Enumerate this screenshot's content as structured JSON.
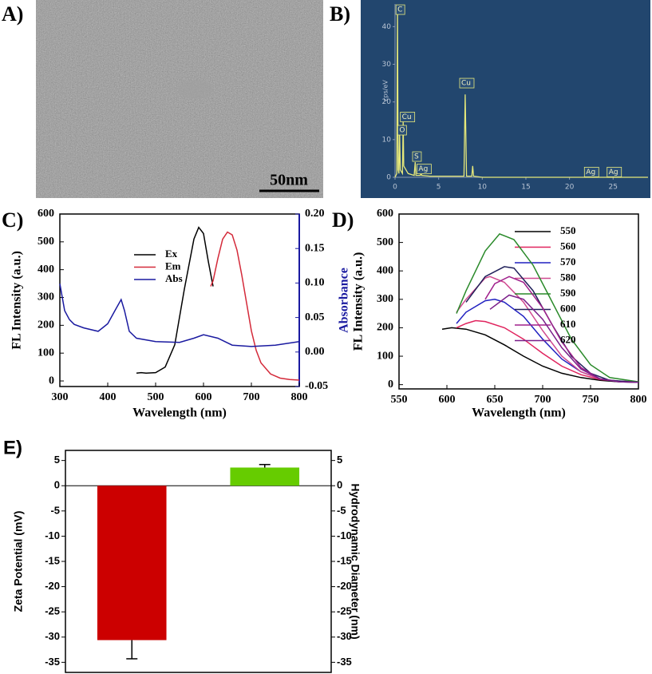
{
  "panel_labels": [
    "A)",
    "B)",
    "C)",
    "D)",
    "E)"
  ],
  "image": {
    "scale_bar": "50nm"
  },
  "chart_data": [
    {
      "type": "spectrum",
      "ylabel": "cps/eV",
      "xlim": [
        0,
        29
      ],
      "ylim": [
        0,
        46
      ],
      "xticks": [
        0,
        5,
        10,
        15,
        20,
        25
      ],
      "yticks": [
        0,
        10,
        20,
        30,
        40
      ],
      "color": "#e6e87a",
      "series": [
        {
          "x": [
            0,
            0.2,
            0.28,
            0.36,
            0.45,
            0.52,
            0.6,
            0.85,
            0.93,
            1.0,
            1.5,
            2.2,
            2.31,
            2.4,
            2.9,
            2.98,
            3.06,
            4,
            7.9,
            8.04,
            8.2,
            8.8,
            8.9,
            9.0,
            10,
            29
          ],
          "values": [
            0,
            1,
            45,
            2,
            1,
            12,
            2,
            1,
            15,
            3,
            1,
            0.5,
            4,
            0.5,
            0.5,
            2,
            0.5,
            0.3,
            0.3,
            22,
            0.3,
            0.3,
            3,
            0.3,
            0,
            0
          ]
        }
      ],
      "annotations": [
        {
          "text": "C",
          "x": 0.2,
          "y": 44.5
        },
        {
          "text": "O",
          "x": 0.4,
          "y": 12.5
        },
        {
          "text": "Cu",
          "x": 0.7,
          "y": 16
        },
        {
          "text": "S",
          "x": 2.1,
          "y": 5.5
        },
        {
          "text": "Ag",
          "x": 2.6,
          "y": 2.2
        },
        {
          "text": "Cu",
          "x": 7.5,
          "y": 25
        },
        {
          "text": "Ag",
          "x": 21.8,
          "y": 1.4
        },
        {
          "text": "Ag",
          "x": 24.4,
          "y": 1.4
        }
      ]
    },
    {
      "type": "line",
      "xlabel": "Wavelength (nm)",
      "ylabel": "FL Intensity (a.u.)",
      "y2label": "Absorbance",
      "y2color": "#1a1aa0",
      "xlim": [
        300,
        800
      ],
      "ylim": [
        -20,
        600
      ],
      "y2lim": [
        -0.05,
        0.2
      ],
      "xticks": [
        300,
        400,
        500,
        600,
        700,
        800
      ],
      "yticks": [
        0,
        100,
        200,
        300,
        400,
        500,
        600
      ],
      "y2ticks": [
        -0.05,
        {
          "value": 0,
          "label": "0.00"
        },
        0.05,
        {
          "value": 0.1,
          "label": "0.10"
        },
        0.15,
        {
          "value": 0.2,
          "label": "0.20"
        }
      ],
      "series": [
        {
          "name": "Ex",
          "color": "#000000",
          "x": [
            460,
            470,
            480,
            500,
            520,
            540,
            560,
            580,
            590,
            600,
            610,
            620
          ],
          "values": [
            28,
            30,
            28,
            30,
            50,
            130,
            330,
            510,
            552,
            530,
            430,
            340
          ]
        },
        {
          "name": "Em",
          "color": "#d42a3a",
          "x": [
            615,
            620,
            630,
            640,
            650,
            660,
            670,
            680,
            690,
            700,
            710,
            720,
            740,
            760,
            780,
            800
          ],
          "values": [
            340,
            360,
            440,
            510,
            535,
            525,
            470,
            380,
            280,
            180,
            110,
            65,
            25,
            10,
            5,
            3
          ]
        },
        {
          "name": "Abs",
          "color": "#1a1aa0",
          "axis": "y2",
          "x": [
            300,
            310,
            320,
            330,
            350,
            380,
            400,
            415,
            428,
            435,
            445,
            460,
            500,
            550,
            580,
            600,
            630,
            660,
            700,
            750,
            800
          ],
          "values": [
            0.099,
            0.06,
            0.047,
            0.04,
            0.035,
            0.03,
            0.041,
            0.06,
            0.076,
            0.06,
            0.03,
            0.02,
            0.015,
            0.014,
            0.02,
            0.025,
            0.02,
            0.01,
            0.008,
            0.01,
            0.015
          ]
        }
      ]
    },
    {
      "type": "line",
      "xlabel": "Wavelength (nm)",
      "ylabel": "FL Intensity (a.u.)",
      "xlim": [
        550,
        800
      ],
      "ylim": [
        -15,
        600
      ],
      "xticks": [
        550,
        600,
        650,
        700,
        750,
        800
      ],
      "yticks": [
        0,
        100,
        200,
        300,
        400,
        500,
        600
      ],
      "series": [
        {
          "name": "550",
          "color": "#000000",
          "x": [
            595,
            605,
            620,
            640,
            660,
            680,
            700,
            720,
            740,
            760,
            780,
            800
          ],
          "values": [
            195,
            200,
            195,
            175,
            140,
            100,
            65,
            40,
            25,
            15,
            10,
            8
          ]
        },
        {
          "name": "560",
          "color": "#e0245e",
          "x": [
            610,
            620,
            630,
            640,
            660,
            680,
            700,
            720,
            740,
            760,
            780,
            800
          ],
          "values": [
            200,
            215,
            225,
            222,
            200,
            160,
            110,
            65,
            35,
            18,
            12,
            10
          ]
        },
        {
          "name": "570",
          "color": "#2020c0",
          "x": [
            610,
            620,
            640,
            650,
            660,
            680,
            700,
            720,
            740,
            760,
            780,
            800
          ],
          "values": [
            215,
            255,
            295,
            300,
            290,
            240,
            160,
            90,
            45,
            20,
            12,
            10
          ]
        },
        {
          "name": "580",
          "color": "#d04a90",
          "x": [
            610,
            620,
            640,
            645,
            660,
            680,
            700,
            720,
            740,
            760,
            780,
            800
          ],
          "values": [
            255,
            300,
            375,
            380,
            360,
            290,
            190,
            100,
            45,
            20,
            12,
            10
          ]
        },
        {
          "name": "590",
          "color": "#2a8a2a",
          "x": [
            610,
            620,
            640,
            655,
            670,
            690,
            710,
            730,
            750,
            770,
            800
          ],
          "values": [
            250,
            330,
            470,
            530,
            510,
            420,
            290,
            160,
            70,
            25,
            10
          ]
        },
        {
          "name": "600",
          "color": "#20205a",
          "x": [
            620,
            640,
            660,
            670,
            690,
            710,
            730,
            750,
            770,
            800
          ],
          "values": [
            290,
            380,
            415,
            410,
            330,
            210,
            100,
            40,
            15,
            8
          ]
        },
        {
          "name": "610",
          "color": "#a0208c",
          "x": [
            640,
            650,
            665,
            680,
            700,
            720,
            740,
            760,
            780,
            800
          ],
          "values": [
            300,
            355,
            380,
            360,
            270,
            150,
            60,
            20,
            10,
            8
          ]
        },
        {
          "name": "620",
          "color": "#7b1f8a",
          "x": [
            645,
            655,
            665,
            680,
            700,
            720,
            740,
            760,
            780,
            800
          ],
          "values": [
            265,
            290,
            315,
            300,
            230,
            130,
            55,
            20,
            10,
            8
          ]
        }
      ]
    },
    {
      "type": "bar",
      "ylabel": "Zeta Potential (mV)",
      "y2label": "Hydrodynamic Diameter (nm)",
      "categories": [
        null,
        null
      ],
      "ylim": [
        -37,
        7
      ],
      "y2lim": [
        -37,
        7
      ],
      "yticks": [
        5,
        0,
        -5,
        -10,
        -15,
        -20,
        -25,
        -30,
        -35
      ],
      "y2ticks": [
        5,
        0,
        -5,
        -10,
        -15,
        -20,
        -25,
        -30,
        -35
      ],
      "series": [
        {
          "color": "#cc0000",
          "values": [
            -30.6,
            null
          ],
          "errors": [
            3.7,
            null
          ]
        },
        {
          "color": "#66cc00",
          "axis": "y2",
          "values": [
            null,
            3.6
          ],
          "errors": [
            null,
            0.6
          ]
        }
      ]
    }
  ]
}
